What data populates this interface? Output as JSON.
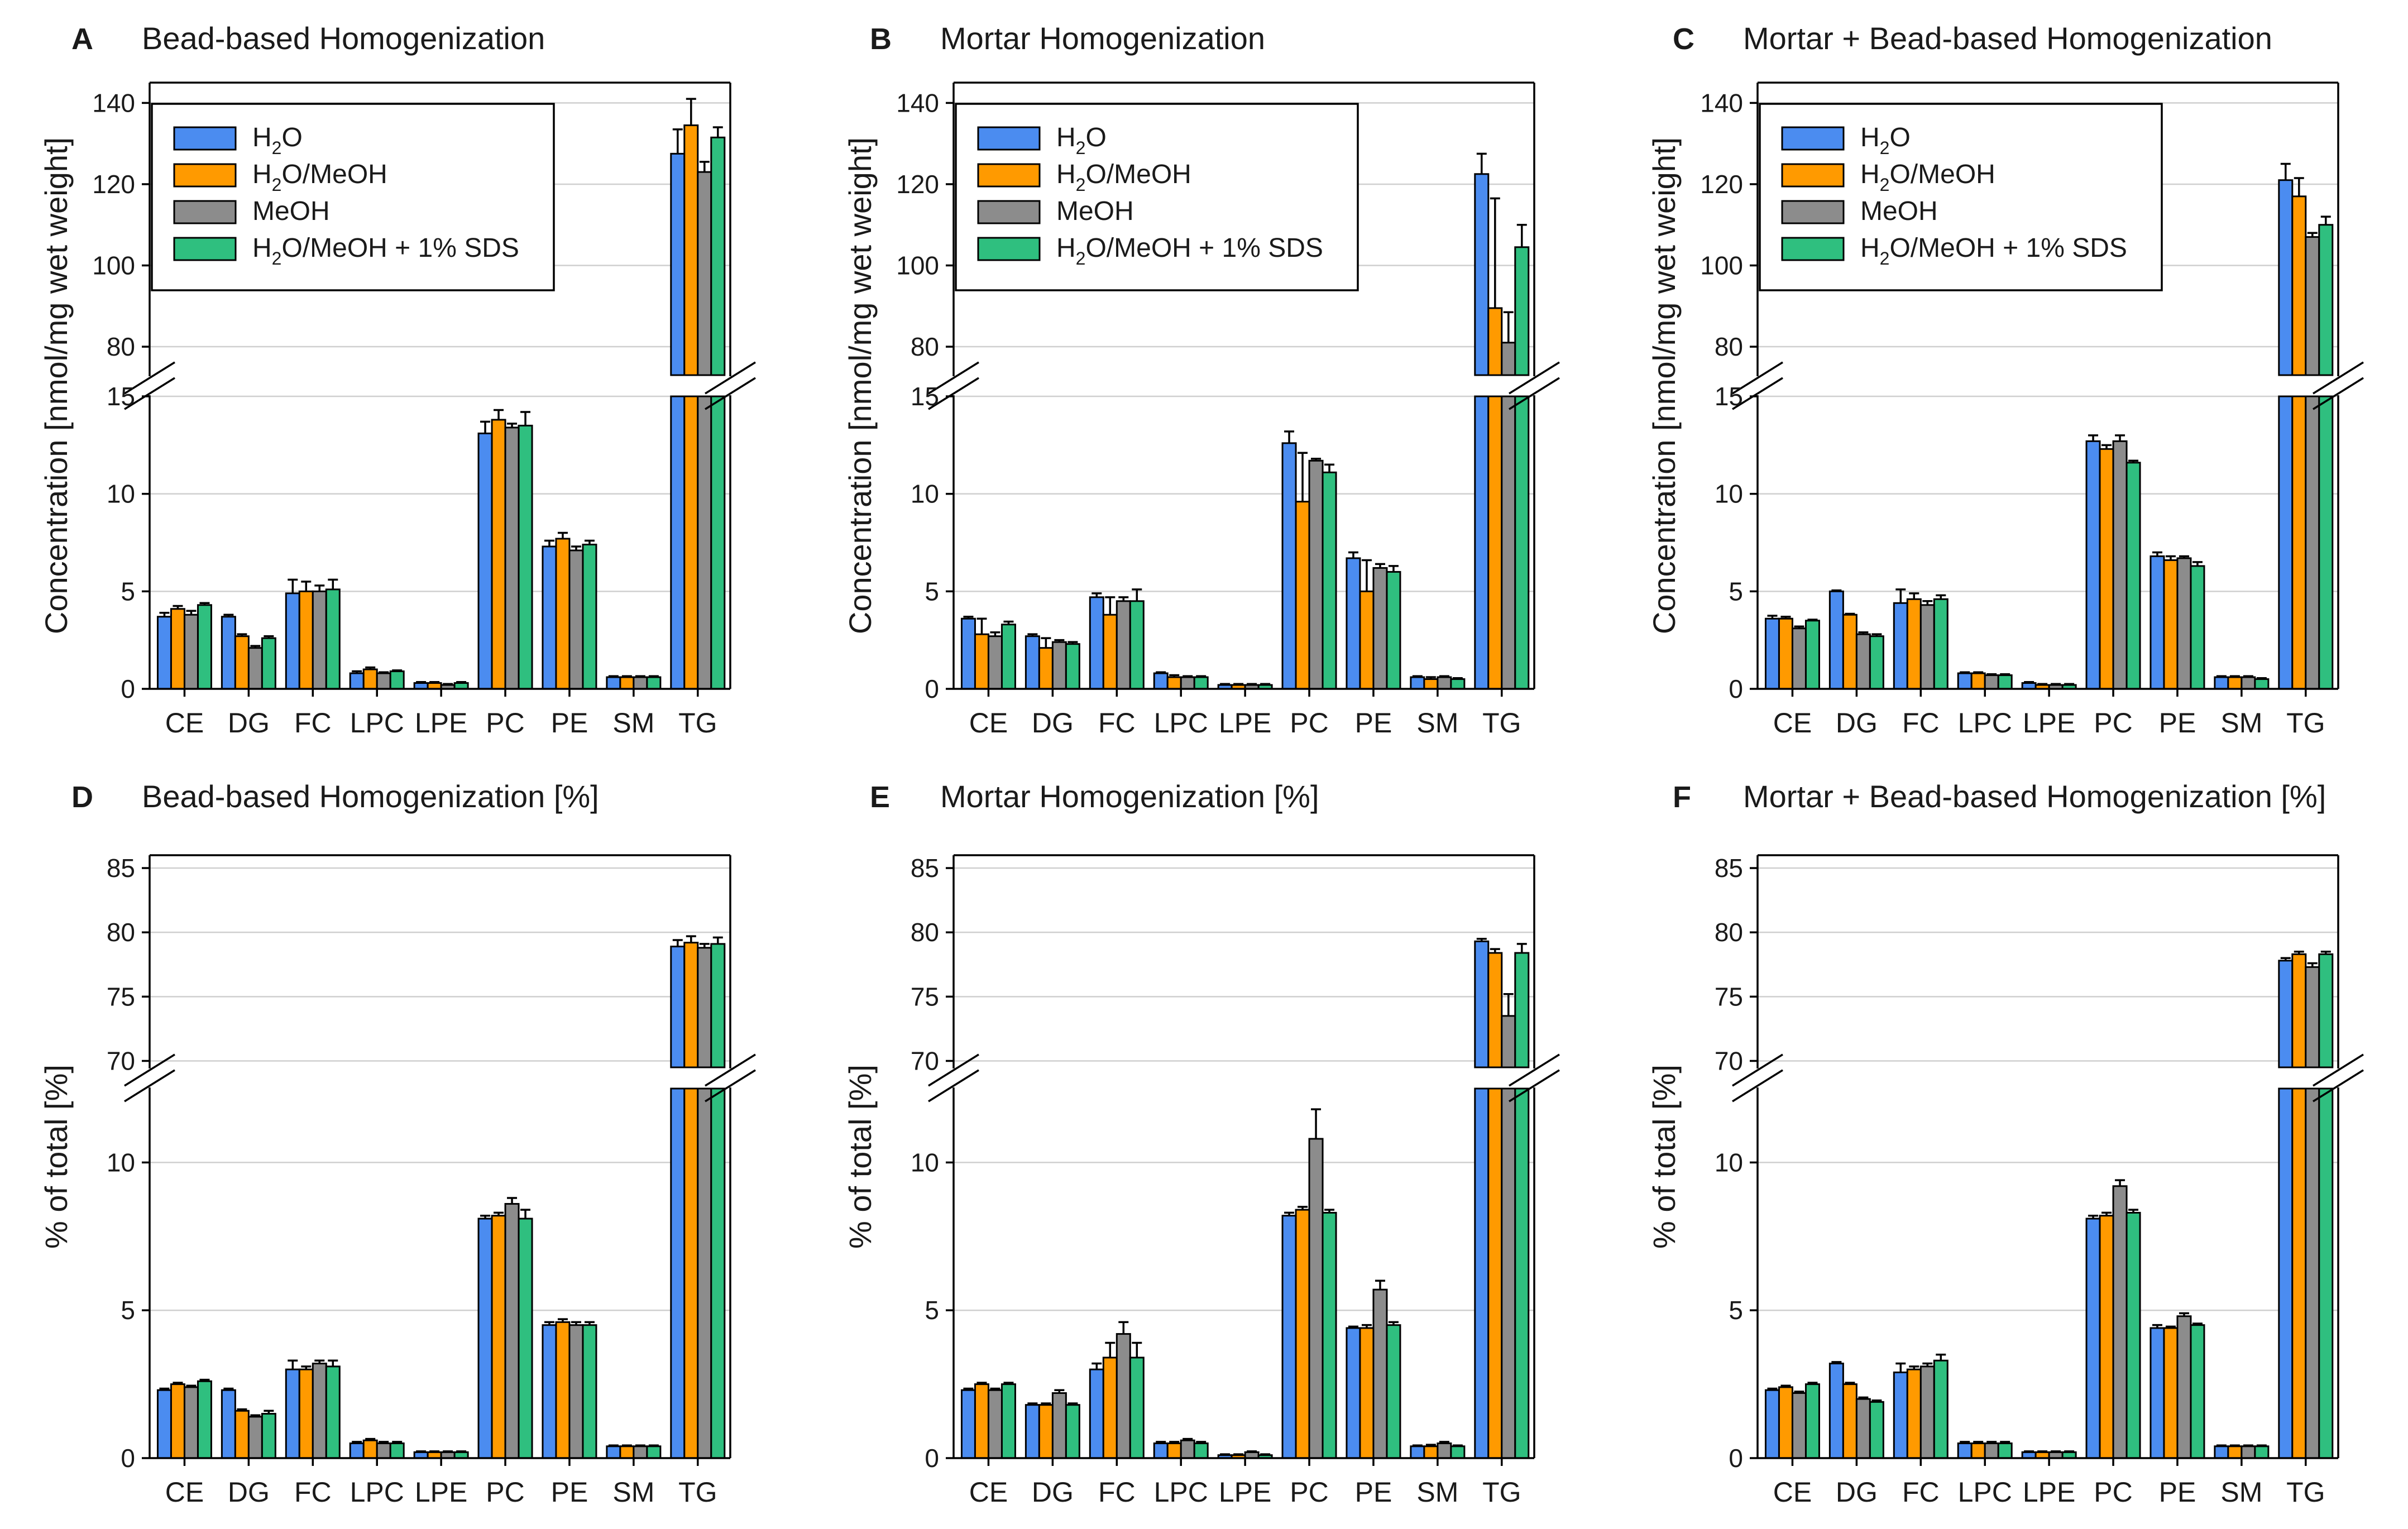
{
  "chart_data": [
    {
      "type": "bar",
      "panel_letter": "A",
      "title": "Bead-based Homogenization",
      "ylabel": "Concentration [nmol/mg wet weight]",
      "xlabel": "",
      "categories": [
        "CE",
        "DG",
        "FC",
        "LPC",
        "LPE",
        "PC",
        "PE",
        "SM",
        "TG"
      ],
      "broken_axis": true,
      "lower_ylim": [
        0,
        15
      ],
      "lower_yticks": [
        "0",
        "5",
        "10",
        "15"
      ],
      "upper_ylim": [
        73,
        145
      ],
      "upper_yticks": [
        "80",
        "100",
        "120",
        "140"
      ],
      "grid": true,
      "legend_placement": "top-left",
      "series": [
        {
          "name": "H2O",
          "values": [
            3.7,
            3.7,
            4.9,
            0.8,
            0.3,
            13.1,
            7.3,
            0.6,
            127.5
          ],
          "errors": [
            0.2,
            0.1,
            0.7,
            0.1,
            0.05,
            0.6,
            0.3,
            0.05,
            6.0
          ]
        },
        {
          "name": "H2O/MeOH",
          "values": [
            4.1,
            2.7,
            5.0,
            1.0,
            0.3,
            13.8,
            7.7,
            0.6,
            134.5
          ],
          "errors": [
            0.15,
            0.1,
            0.5,
            0.1,
            0.05,
            0.5,
            0.3,
            0.05,
            6.5
          ]
        },
        {
          "name": "MeOH",
          "values": [
            3.8,
            2.1,
            5.0,
            0.8,
            0.2,
            13.4,
            7.1,
            0.6,
            123.0
          ],
          "errors": [
            0.2,
            0.1,
            0.3,
            0.05,
            0.05,
            0.2,
            0.2,
            0.05,
            2.5
          ]
        },
        {
          "name": "H2O/MeOH + 1% SDS",
          "values": [
            4.3,
            2.6,
            5.1,
            0.9,
            0.3,
            13.5,
            7.4,
            0.6,
            131.5
          ],
          "errors": [
            0.1,
            0.1,
            0.5,
            0.05,
            0.05,
            0.7,
            0.2,
            0.05,
            2.5
          ]
        }
      ]
    },
    {
      "type": "bar",
      "panel_letter": "B",
      "title": "Mortar Homogenization",
      "ylabel": "Concentration [nmol/mg wet weight]",
      "xlabel": "",
      "categories": [
        "CE",
        "DG",
        "FC",
        "LPC",
        "LPE",
        "PC",
        "PE",
        "SM",
        "TG"
      ],
      "broken_axis": true,
      "lower_ylim": [
        0,
        15
      ],
      "lower_yticks": [
        "0",
        "5",
        "10",
        "15"
      ],
      "upper_ylim": [
        73,
        145
      ],
      "upper_yticks": [
        "80",
        "100",
        "120",
        "140"
      ],
      "grid": true,
      "legend_placement": "top-left",
      "series": [
        {
          "name": "H2O",
          "values": [
            3.6,
            2.7,
            4.7,
            0.8,
            0.2,
            12.6,
            6.7,
            0.6,
            122.5
          ],
          "errors": [
            0.1,
            0.1,
            0.2,
            0.05,
            0.05,
            0.6,
            0.3,
            0.05,
            5.0
          ]
        },
        {
          "name": "H2O/MeOH",
          "values": [
            2.8,
            2.1,
            3.8,
            0.6,
            0.2,
            9.6,
            5.0,
            0.5,
            89.5
          ],
          "errors": [
            0.8,
            0.5,
            0.9,
            0.1,
            0.05,
            2.5,
            1.6,
            0.1,
            27.0
          ]
        },
        {
          "name": "MeOH",
          "values": [
            2.7,
            2.4,
            4.5,
            0.6,
            0.2,
            11.7,
            6.2,
            0.6,
            81.0
          ],
          "errors": [
            0.2,
            0.1,
            0.2,
            0.05,
            0.05,
            0.1,
            0.2,
            0.05,
            7.5
          ]
        },
        {
          "name": "H2O/MeOH + 1% SDS",
          "values": [
            3.3,
            2.3,
            4.5,
            0.6,
            0.2,
            11.1,
            6.0,
            0.5,
            104.5
          ],
          "errors": [
            0.15,
            0.1,
            0.6,
            0.05,
            0.05,
            0.4,
            0.3,
            0.05,
            5.5
          ]
        }
      ]
    },
    {
      "type": "bar",
      "panel_letter": "C",
      "title": "Mortar + Bead-based Homogenization",
      "ylabel": "Concentration [nmol/mg wet weight]",
      "xlabel": "",
      "categories": [
        "CE",
        "DG",
        "FC",
        "LPC",
        "LPE",
        "PC",
        "PE",
        "SM",
        "TG"
      ],
      "broken_axis": true,
      "lower_ylim": [
        0,
        15
      ],
      "lower_yticks": [
        "0",
        "5",
        "10",
        "15"
      ],
      "upper_ylim": [
        73,
        145
      ],
      "upper_yticks": [
        "80",
        "100",
        "120",
        "140"
      ],
      "grid": true,
      "legend_placement": "top-left",
      "series": [
        {
          "name": "H2O",
          "values": [
            3.6,
            5.0,
            4.4,
            0.8,
            0.3,
            12.7,
            6.8,
            0.6,
            121.0
          ],
          "errors": [
            0.15,
            0.05,
            0.7,
            0.05,
            0.05,
            0.3,
            0.2,
            0.05,
            4.0
          ]
        },
        {
          "name": "H2O/MeOH",
          "values": [
            3.6,
            3.8,
            4.6,
            0.8,
            0.2,
            12.3,
            6.6,
            0.6,
            117.0
          ],
          "errors": [
            0.1,
            0.05,
            0.3,
            0.05,
            0.05,
            0.2,
            0.2,
            0.05,
            4.5
          ]
        },
        {
          "name": "MeOH",
          "values": [
            3.1,
            2.8,
            4.3,
            0.7,
            0.2,
            12.7,
            6.7,
            0.6,
            107.0
          ],
          "errors": [
            0.1,
            0.1,
            0.2,
            0.05,
            0.05,
            0.3,
            0.1,
            0.05,
            1.0
          ]
        },
        {
          "name": "H2O/MeOH + 1% SDS",
          "values": [
            3.5,
            2.7,
            4.6,
            0.7,
            0.2,
            11.6,
            6.3,
            0.5,
            110.0
          ],
          "errors": [
            0.05,
            0.1,
            0.2,
            0.05,
            0.05,
            0.1,
            0.2,
            0.05,
            2.0
          ]
        }
      ]
    },
    {
      "type": "bar",
      "panel_letter": "D",
      "title": "Bead-based Homogenization [%]",
      "ylabel": "% of total [%]",
      "xlabel": "",
      "categories": [
        "CE",
        "DG",
        "FC",
        "LPC",
        "LPE",
        "PC",
        "PE",
        "SM",
        "TG"
      ],
      "broken_axis": true,
      "lower_ylim": [
        0,
        12.5
      ],
      "lower_yticks": [
        "0",
        "5",
        "10"
      ],
      "upper_ylim": [
        69.5,
        86
      ],
      "upper_yticks": [
        "70",
        "75",
        "80",
        "85"
      ],
      "grid": true,
      "series": [
        {
          "name": "H2O",
          "values": [
            2.3,
            2.3,
            3.0,
            0.5,
            0.2,
            8.1,
            4.5,
            0.4,
            78.9
          ],
          "errors": [
            0.05,
            0.05,
            0.3,
            0.05,
            0.03,
            0.1,
            0.1,
            0.03,
            0.5
          ]
        },
        {
          "name": "H2O/MeOH",
          "values": [
            2.5,
            1.6,
            3.0,
            0.6,
            0.2,
            8.2,
            4.6,
            0.4,
            79.2
          ],
          "errors": [
            0.05,
            0.05,
            0.1,
            0.05,
            0.03,
            0.1,
            0.1,
            0.03,
            0.5
          ]
        },
        {
          "name": "MeOH",
          "values": [
            2.4,
            1.4,
            3.2,
            0.5,
            0.2,
            8.6,
            4.5,
            0.4,
            78.8
          ],
          "errors": [
            0.05,
            0.05,
            0.1,
            0.05,
            0.03,
            0.2,
            0.1,
            0.03,
            0.3
          ]
        },
        {
          "name": "H2O/MeOH + 1% SDS",
          "values": [
            2.6,
            1.5,
            3.1,
            0.5,
            0.2,
            8.1,
            4.5,
            0.4,
            79.1
          ],
          "errors": [
            0.05,
            0.1,
            0.2,
            0.05,
            0.03,
            0.3,
            0.1,
            0.03,
            0.5
          ]
        }
      ]
    },
    {
      "type": "bar",
      "panel_letter": "E",
      "title": "Mortar Homogenization [%]",
      "ylabel": "% of total [%]",
      "xlabel": "",
      "categories": [
        "CE",
        "DG",
        "FC",
        "LPC",
        "LPE",
        "PC",
        "PE",
        "SM",
        "TG"
      ],
      "broken_axis": true,
      "lower_ylim": [
        0,
        12.5
      ],
      "lower_yticks": [
        "0",
        "5",
        "10"
      ],
      "upper_ylim": [
        69.5,
        86
      ],
      "upper_yticks": [
        "70",
        "75",
        "80",
        "85"
      ],
      "grid": true,
      "series": [
        {
          "name": "H2O",
          "values": [
            2.3,
            1.8,
            3.0,
            0.5,
            0.1,
            8.2,
            4.4,
            0.4,
            79.3
          ],
          "errors": [
            0.05,
            0.05,
            0.2,
            0.05,
            0.03,
            0.1,
            0.05,
            0.03,
            0.2
          ]
        },
        {
          "name": "H2O/MeOH",
          "values": [
            2.5,
            1.8,
            3.4,
            0.5,
            0.1,
            8.4,
            4.4,
            0.4,
            78.4
          ],
          "errors": [
            0.05,
            0.05,
            0.5,
            0.05,
            0.03,
            0.1,
            0.1,
            0.05,
            0.3
          ]
        },
        {
          "name": "MeOH",
          "values": [
            2.3,
            2.2,
            4.2,
            0.6,
            0.2,
            10.8,
            5.7,
            0.5,
            73.5
          ],
          "errors": [
            0.05,
            0.1,
            0.4,
            0.05,
            0.03,
            1.0,
            0.3,
            0.05,
            1.7
          ]
        },
        {
          "name": "H2O/MeOH + 1% SDS",
          "values": [
            2.5,
            1.8,
            3.4,
            0.5,
            0.1,
            8.3,
            4.5,
            0.4,
            78.4
          ],
          "errors": [
            0.05,
            0.05,
            0.5,
            0.05,
            0.03,
            0.1,
            0.1,
            0.03,
            0.7
          ]
        }
      ]
    },
    {
      "type": "bar",
      "panel_letter": "F",
      "title": "Mortar + Bead-based Homogenization [%]",
      "ylabel": "% of total [%]",
      "xlabel": "",
      "categories": [
        "CE",
        "DG",
        "FC",
        "LPC",
        "LPE",
        "PC",
        "PE",
        "SM",
        "TG"
      ],
      "broken_axis": true,
      "lower_ylim": [
        0,
        12.5
      ],
      "lower_yticks": [
        "0",
        "5",
        "10"
      ],
      "upper_ylim": [
        69.5,
        86
      ],
      "upper_yticks": [
        "70",
        "75",
        "80",
        "85"
      ],
      "grid": true,
      "series": [
        {
          "name": "H2O",
          "values": [
            2.3,
            3.2,
            2.9,
            0.5,
            0.2,
            8.1,
            4.4,
            0.4,
            77.8
          ],
          "errors": [
            0.05,
            0.05,
            0.3,
            0.05,
            0.03,
            0.1,
            0.1,
            0.03,
            0.2
          ]
        },
        {
          "name": "H2O/MeOH",
          "values": [
            2.4,
            2.5,
            3.0,
            0.5,
            0.2,
            8.2,
            4.4,
            0.4,
            78.3
          ],
          "errors": [
            0.05,
            0.05,
            0.1,
            0.05,
            0.03,
            0.1,
            0.05,
            0.03,
            0.2
          ]
        },
        {
          "name": "MeOH",
          "values": [
            2.2,
            2.0,
            3.1,
            0.5,
            0.2,
            9.2,
            4.8,
            0.4,
            77.3
          ],
          "errors": [
            0.05,
            0.05,
            0.1,
            0.05,
            0.03,
            0.2,
            0.1,
            0.03,
            0.3
          ]
        },
        {
          "name": "H2O/MeOH + 1% SDS",
          "values": [
            2.5,
            1.9,
            3.3,
            0.5,
            0.2,
            8.3,
            4.5,
            0.4,
            78.3
          ],
          "errors": [
            0.05,
            0.05,
            0.2,
            0.05,
            0.03,
            0.1,
            0.05,
            0.03,
            0.2
          ]
        }
      ]
    }
  ],
  "legend": {
    "entries": [
      {
        "base": "H",
        "sub": "2",
        "rest": "O"
      },
      {
        "base": "H",
        "sub": "2",
        "rest": "O/MeOH"
      },
      {
        "base": "MeOH",
        "sub": "",
        "rest": ""
      },
      {
        "base": "H",
        "sub": "2",
        "rest": "O/MeOH + 1% SDS"
      }
    ],
    "colors": [
      "#4b8cf0",
      "#ff9a00",
      "#8c8c8c",
      "#2fbf7f"
    ]
  },
  "colors": {
    "series": [
      "#4b8cf0",
      "#ff9a00",
      "#8c8c8c",
      "#2fbf7f"
    ],
    "grid": "#cfcfcf",
    "axis": "#000000"
  }
}
